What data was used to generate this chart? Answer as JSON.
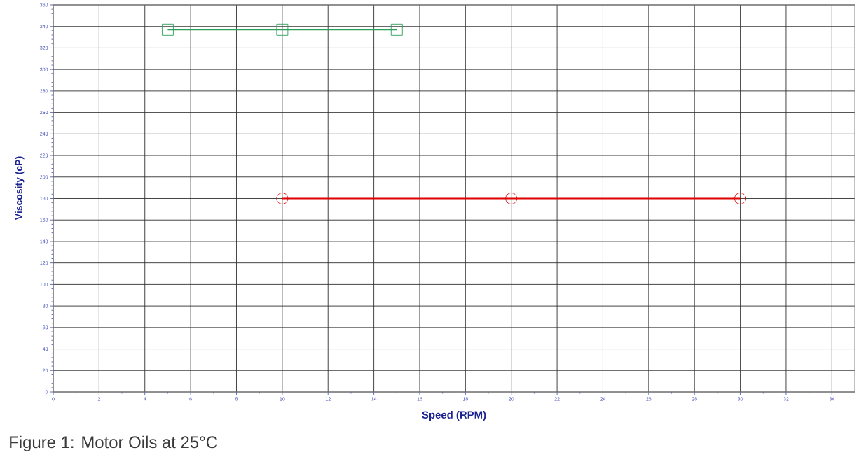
{
  "chart_data": {
    "type": "line",
    "xlabel": "Speed (RPM)",
    "ylabel": "Viscosity (cP)",
    "annotations": [
      "Figure 1: Motor Oils at 25°C"
    ],
    "series": [
      {
        "color": "#2e9e5b",
        "x": [
          5,
          10,
          15
        ],
        "values": [
          337,
          337,
          337
        ],
        "marker": "square"
      },
      {
        "color": "#e00000",
        "x": [
          10,
          20,
          30
        ],
        "values": [
          180,
          180,
          180
        ],
        "marker": "circle"
      }
    ],
    "xlim": [
      0,
      35
    ],
    "xticks": [
      0,
      2,
      4,
      6,
      8,
      10,
      12,
      14,
      16,
      18,
      20,
      22,
      24,
      26,
      28,
      30,
      32,
      34
    ],
    "ylim": [
      0,
      360
    ],
    "yticks": [
      0,
      20,
      40,
      60,
      80,
      100,
      120,
      140,
      160,
      180,
      200,
      220,
      240,
      260,
      280,
      300,
      320,
      340,
      360
    ],
    "grid": true,
    "line_style": "solid"
  }
}
